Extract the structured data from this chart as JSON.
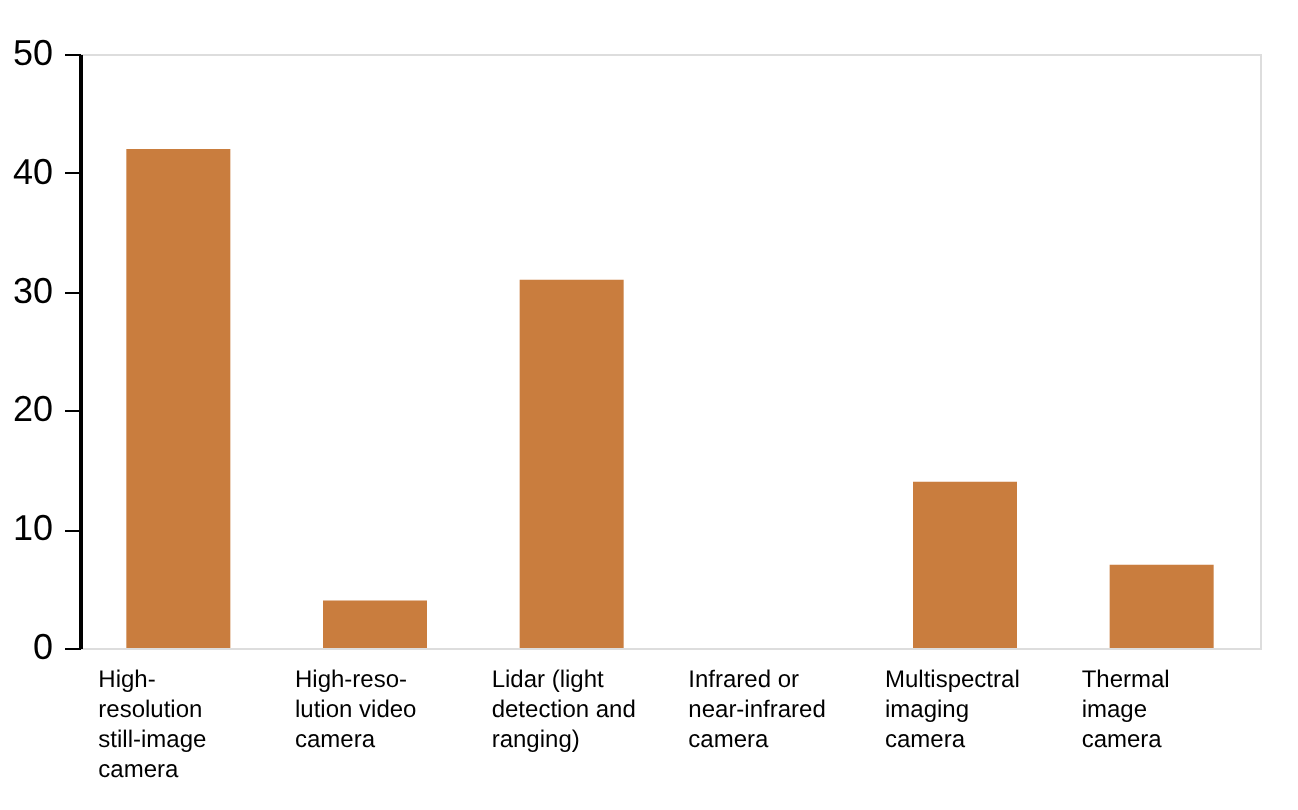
{
  "chart_data": {
    "type": "bar",
    "categories": [
      "High-\nresolution\nstill-image\ncamera",
      "High-reso-\nlution video\ncamera",
      "Lidar (light\ndetection and\nranging)",
      "Infrared or\nnear-infrared\ncamera",
      "Multispectral\nimaging\ncamera",
      "Thermal\nimage\ncamera"
    ],
    "values": [
      42,
      4,
      31,
      0,
      14,
      7
    ],
    "color": "#c97d3e",
    "ylim": [
      0,
      50
    ],
    "yticks": [
      0,
      10,
      20,
      30,
      40,
      50
    ],
    "grid": false
  }
}
